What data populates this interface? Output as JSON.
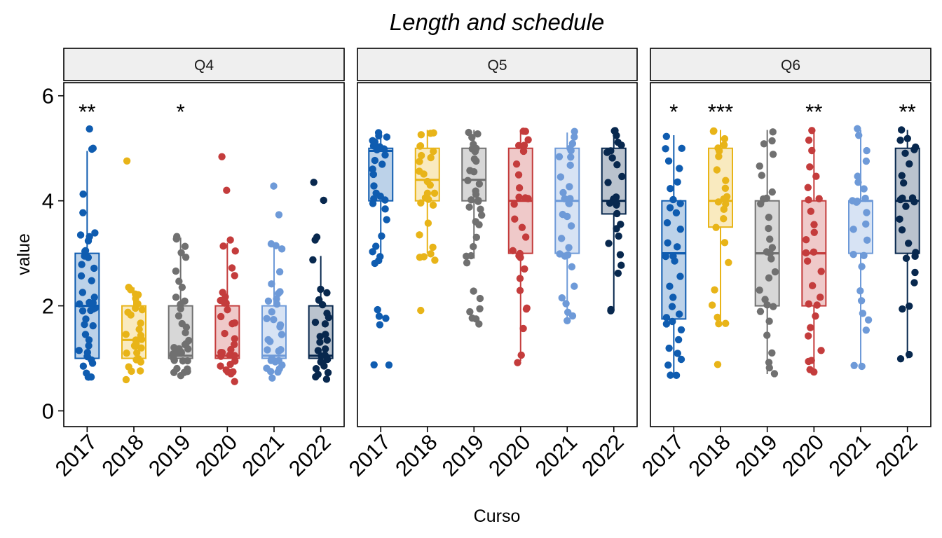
{
  "chart_data": {
    "type": "box",
    "title": "Length and schedule",
    "xlabel": "Curso",
    "ylabel": "value",
    "ylim": [
      -0.3,
      6.25
    ],
    "yticks": [
      0,
      2,
      4,
      6
    ],
    "categories": [
      "2017",
      "2018",
      "2019",
      "2020",
      "2021",
      "2022"
    ],
    "colors": {
      "2017": "#0F5CB0",
      "2018": "#E8B418",
      "2019": "#707070",
      "2020": "#C43C3C",
      "2021": "#6E9AD8",
      "2022": "#08284E"
    },
    "facets": [
      {
        "label": "Q4",
        "boxes": [
          {
            "category": "2017",
            "q1": 1,
            "median": 2,
            "q3": 3,
            "whisker_low": 1,
            "whisker_high": 4.95,
            "outliers": [
              5.35
            ],
            "significance": "**",
            "points": [
              0.65,
              0.7,
              0.75,
              0.8,
              0.9,
              1.0,
              1.0,
              1.05,
              1.1,
              1.2,
              1.3,
              1.4,
              1.5,
              1.6,
              1.7,
              1.8,
              1.85,
              1.9,
              1.95,
              2.0,
              2.0,
              2.05,
              2.1,
              2.2,
              2.3,
              2.5,
              2.6,
              2.7,
              2.8,
              2.9,
              2.95,
              3.0,
              3.05,
              3.2,
              3.3,
              3.35,
              3.4,
              3.75,
              4.15,
              4.95,
              5.05,
              5.35
            ]
          },
          {
            "category": "2018",
            "q1": 1,
            "median": 1.35,
            "q3": 2,
            "whisker_low": 1,
            "whisker_high": 2.35,
            "outliers": [
              4.75
            ],
            "significance": "",
            "points": [
              0.62,
              0.7,
              0.75,
              0.8,
              0.9,
              1.0,
              1.0,
              1.05,
              1.1,
              1.15,
              1.2,
              1.25,
              1.3,
              1.35,
              1.4,
              1.45,
              1.5,
              1.6,
              1.7,
              1.8,
              1.85,
              1.9,
              2.0,
              2.05,
              2.1,
              2.2,
              2.25,
              2.3,
              2.35,
              4.75
            ]
          },
          {
            "category": "2019",
            "q1": 1,
            "median": 1.05,
            "q3": 2,
            "whisker_low": 1,
            "whisker_high": 3.3,
            "outliers": [],
            "significance": "*",
            "points": [
              0.65,
              0.7,
              0.72,
              0.78,
              0.8,
              0.85,
              0.9,
              0.95,
              1.0,
              1.0,
              1.02,
              1.05,
              1.05,
              1.08,
              1.1,
              1.12,
              1.15,
              1.18,
              1.2,
              1.25,
              1.3,
              1.4,
              1.5,
              1.6,
              1.7,
              1.8,
              1.9,
              2.0,
              2.05,
              2.2,
              2.3,
              2.5,
              2.7,
              2.9,
              3.05,
              3.1,
              3.25,
              3.3
            ]
          },
          {
            "category": "2020",
            "q1": 1,
            "median": 1.05,
            "q3": 2,
            "whisker_low": 1,
            "whisker_high": 3.2,
            "outliers": [
              4.25,
              4.8
            ],
            "significance": "",
            "points": [
              0.6,
              0.65,
              0.7,
              0.75,
              0.8,
              0.85,
              0.9,
              1.0,
              1.0,
              1.05,
              1.05,
              1.1,
              1.15,
              1.2,
              1.3,
              1.4,
              1.5,
              1.6,
              1.7,
              1.8,
              1.9,
              2.0,
              2.05,
              2.1,
              2.2,
              2.3,
              2.6,
              2.7,
              3.05,
              3.15,
              3.25,
              4.25,
              4.8
            ]
          },
          {
            "category": "2021",
            "q1": 1,
            "median": 1.05,
            "q3": 2,
            "whisker_low": 1,
            "whisker_high": 3.15,
            "outliers": [
              3.7,
              4.25
            ],
            "significance": "",
            "points": [
              0.62,
              0.68,
              0.72,
              0.78,
              0.85,
              0.9,
              0.95,
              1.0,
              1.0,
              1.05,
              1.1,
              1.15,
              1.2,
              1.3,
              1.4,
              1.5,
              1.55,
              1.6,
              1.7,
              1.8,
              1.9,
              2.0,
              2.05,
              2.1,
              2.2,
              2.3,
              2.4,
              2.7,
              3.05,
              3.1,
              3.15,
              3.7,
              4.25
            ]
          },
          {
            "category": "2022",
            "q1": 1,
            "median": 1.05,
            "q3": 2,
            "whisker_low": 1,
            "whisker_high": 2.95,
            "outliers": [
              3.3,
              3.3,
              4.0,
              4.3
            ],
            "significance": "",
            "points": [
              0.6,
              0.65,
              0.7,
              0.75,
              0.8,
              0.85,
              0.9,
              0.95,
              1.0,
              1.0,
              1.05,
              1.1,
              1.15,
              1.2,
              1.25,
              1.3,
              1.4,
              1.5,
              1.6,
              1.7,
              1.8,
              1.9,
              2.0,
              2.05,
              2.1,
              2.2,
              2.3,
              2.9,
              3.3,
              3.3,
              4.0,
              4.3
            ]
          }
        ]
      },
      {
        "label": "Q5",
        "boxes": [
          {
            "category": "2017",
            "q1": 4,
            "median": 4.95,
            "q3": 5,
            "whisker_low": 2.95,
            "whisker_high": 5.3,
            "outliers": [
              0.85,
              0.88,
              1.6,
              1.75,
              1.85,
              1.95
            ],
            "significance": "",
            "points": [
              0.85,
              0.88,
              1.6,
              1.75,
              1.85,
              1.95,
              2.85,
              2.9,
              2.95,
              3.0,
              3.1,
              3.3,
              3.6,
              3.8,
              3.9,
              4.0,
              4.05,
              4.1,
              4.2,
              4.3,
              4.5,
              4.6,
              4.7,
              4.8,
              4.9,
              4.95,
              4.95,
              5.0,
              5.0,
              5.05,
              5.1,
              5.15,
              5.2,
              5.25,
              5.3
            ]
          },
          {
            "category": "2018",
            "q1": 4,
            "median": 4.4,
            "q3": 5,
            "whisker_low": 3.0,
            "whisker_high": 5.35,
            "outliers": [
              1.9
            ],
            "significance": "",
            "points": [
              1.9,
              2.85,
              2.9,
              2.95,
              3.0,
              3.1,
              3.3,
              3.6,
              3.9,
              4.0,
              4.0,
              4.05,
              4.1,
              4.2,
              4.3,
              4.4,
              4.5,
              4.6,
              4.7,
              4.8,
              4.9,
              5.0,
              5.0,
              5.1,
              5.2,
              5.3,
              5.35
            ]
          },
          {
            "category": "2019",
            "q1": 4,
            "median": 4.4,
            "q3": 5,
            "whisker_low": 2.9,
            "whisker_high": 5.35,
            "outliers": [
              1.6,
              1.7,
              1.75,
              1.9,
              2.0,
              2.15,
              2.3
            ],
            "significance": "",
            "points": [
              1.6,
              1.7,
              1.75,
              1.9,
              2.0,
              2.15,
              2.3,
              2.8,
              2.9,
              3.0,
              3.1,
              3.3,
              3.5,
              3.6,
              3.7,
              3.8,
              3.9,
              4.0,
              4.0,
              4.05,
              4.1,
              4.2,
              4.3,
              4.4,
              4.5,
              4.6,
              4.7,
              4.8,
              4.9,
              5.0,
              5.0,
              5.1,
              5.2,
              5.3,
              5.35
            ]
          },
          {
            "category": "2020",
            "q1": 3,
            "median": 4,
            "q3": 5,
            "whisker_low": 0.95,
            "whisker_high": 5.35,
            "outliers": [],
            "significance": "",
            "points": [
              0.95,
              1.05,
              1.6,
              1.9,
              2.0,
              2.3,
              2.5,
              2.7,
              2.9,
              3.0,
              3.0,
              3.1,
              3.3,
              3.5,
              3.7,
              3.9,
              4.0,
              4.0,
              4.0,
              4.1,
              4.3,
              4.5,
              4.7,
              4.9,
              5.0,
              5.0,
              5.1,
              5.2,
              5.3,
              5.35
            ]
          },
          {
            "category": "2021",
            "q1": 3,
            "median": 4,
            "q3": 5,
            "whisker_low": 1.7,
            "whisker_high": 5.3,
            "outliers": [],
            "significance": "",
            "points": [
              1.7,
              1.8,
              1.9,
              2.0,
              2.2,
              2.4,
              2.7,
              2.9,
              3.0,
              3.0,
              3.1,
              3.3,
              3.5,
              3.7,
              3.8,
              4.0,
              4.0,
              4.0,
              4.1,
              4.2,
              4.3,
              4.5,
              4.7,
              4.8,
              4.9,
              5.0,
              5.0,
              5.1,
              5.2,
              5.3
            ]
          },
          {
            "category": "2022",
            "q1": 3.75,
            "median": 4,
            "q3": 5,
            "whisker_low": 1.9,
            "whisker_high": 5.35,
            "outliers": [],
            "significance": "",
            "points": [
              1.9,
              1.95,
              2.6,
              2.8,
              3.0,
              3.2,
              3.3,
              3.5,
              3.6,
              3.75,
              3.9,
              4.0,
              4.0,
              4.0,
              4.1,
              4.3,
              4.5,
              4.7,
              4.8,
              4.9,
              5.0,
              5.0,
              5.1,
              5.2,
              5.3,
              5.35
            ]
          }
        ]
      },
      {
        "label": "Q6",
        "boxes": [
          {
            "category": "2017",
            "q1": 1.75,
            "median": 3,
            "q3": 4,
            "whisker_low": 0.65,
            "whisker_high": 5.25,
            "outliers": [],
            "significance": "*",
            "points": [
              0.65,
              0.7,
              0.85,
              1.0,
              1.1,
              1.2,
              1.35,
              1.5,
              1.6,
              1.75,
              1.8,
              1.9,
              2.0,
              2.2,
              2.4,
              2.6,
              2.8,
              3.0,
              3.0,
              3.1,
              3.2,
              3.4,
              3.6,
              3.8,
              3.9,
              4.0,
              4.0,
              4.2,
              4.4,
              4.6,
              4.8,
              4.95,
              5.0,
              5.25
            ]
          },
          {
            "category": "2018",
            "q1": 3.5,
            "median": 4,
            "q3": 5,
            "whisker_low": 1.65,
            "whisker_high": 5.35,
            "outliers": [
              0.85
            ],
            "significance": "***",
            "points": [
              0.85,
              1.65,
              1.7,
              1.8,
              2.0,
              2.3,
              2.8,
              3.2,
              3.5,
              3.6,
              3.8,
              4.0,
              4.0,
              4.0,
              4.1,
              4.2,
              4.4,
              4.6,
              4.8,
              5.0,
              5.0,
              5.1,
              5.2,
              5.3,
              5.35
            ]
          },
          {
            "category": "2019",
            "q1": 2,
            "median": 3,
            "q3": 4,
            "whisker_low": 0.7,
            "whisker_high": 5.35,
            "outliers": [],
            "significance": "",
            "points": [
              0.7,
              0.8,
              0.9,
              1.1,
              1.4,
              1.7,
              1.9,
              2.0,
              2.0,
              2.1,
              2.3,
              2.5,
              2.7,
              2.9,
              3.0,
              3.0,
              3.1,
              3.3,
              3.5,
              3.7,
              3.9,
              4.0,
              4.0,
              4.2,
              4.5,
              4.7,
              4.9,
              5.1,
              5.2,
              5.35
            ]
          },
          {
            "category": "2020",
            "q1": 2,
            "median": 3,
            "q3": 4,
            "whisker_low": 0.75,
            "whisker_high": 5.3,
            "outliers": [],
            "significance": "**",
            "points": [
              0.75,
              0.8,
              0.9,
              1.0,
              1.2,
              1.4,
              1.6,
              1.8,
              2.0,
              2.0,
              2.2,
              2.4,
              2.6,
              2.8,
              3.0,
              3.0,
              3.2,
              3.4,
              3.6,
              3.8,
              4.0,
              4.0,
              4.2,
              4.5,
              4.7,
              4.9,
              5.1,
              5.3
            ]
          },
          {
            "category": "2021",
            "q1": 3,
            "median": 4,
            "q3": 4,
            "whisker_low": 0.85,
            "whisker_high": 5.35,
            "outliers": [],
            "significance": "",
            "points": [
              0.85,
              0.88,
              1.5,
              1.7,
              1.9,
              2.1,
              2.3,
              2.7,
              3.0,
              3.0,
              3.2,
              3.4,
              3.6,
              3.8,
              4.0,
              4.0,
              4.0,
              4.1,
              4.2,
              4.3,
              4.5,
              4.8,
              5.0,
              5.2,
              5.35
            ]
          },
          {
            "category": "2022",
            "q1": 3,
            "median": 4,
            "q3": 5,
            "whisker_low": 1.0,
            "whisker_high": 5.35,
            "outliers": [],
            "significance": "**",
            "points": [
              1.0,
              1.1,
              1.9,
              2.0,
              2.4,
              2.6,
              2.9,
              3.0,
              3.0,
              3.2,
              3.5,
              3.7,
              3.9,
              4.0,
              4.0,
              4.0,
              4.1,
              4.3,
              4.5,
              4.7,
              4.9,
              5.0,
              5.0,
              5.1,
              5.2,
              5.35
            ]
          }
        ]
      }
    ]
  }
}
